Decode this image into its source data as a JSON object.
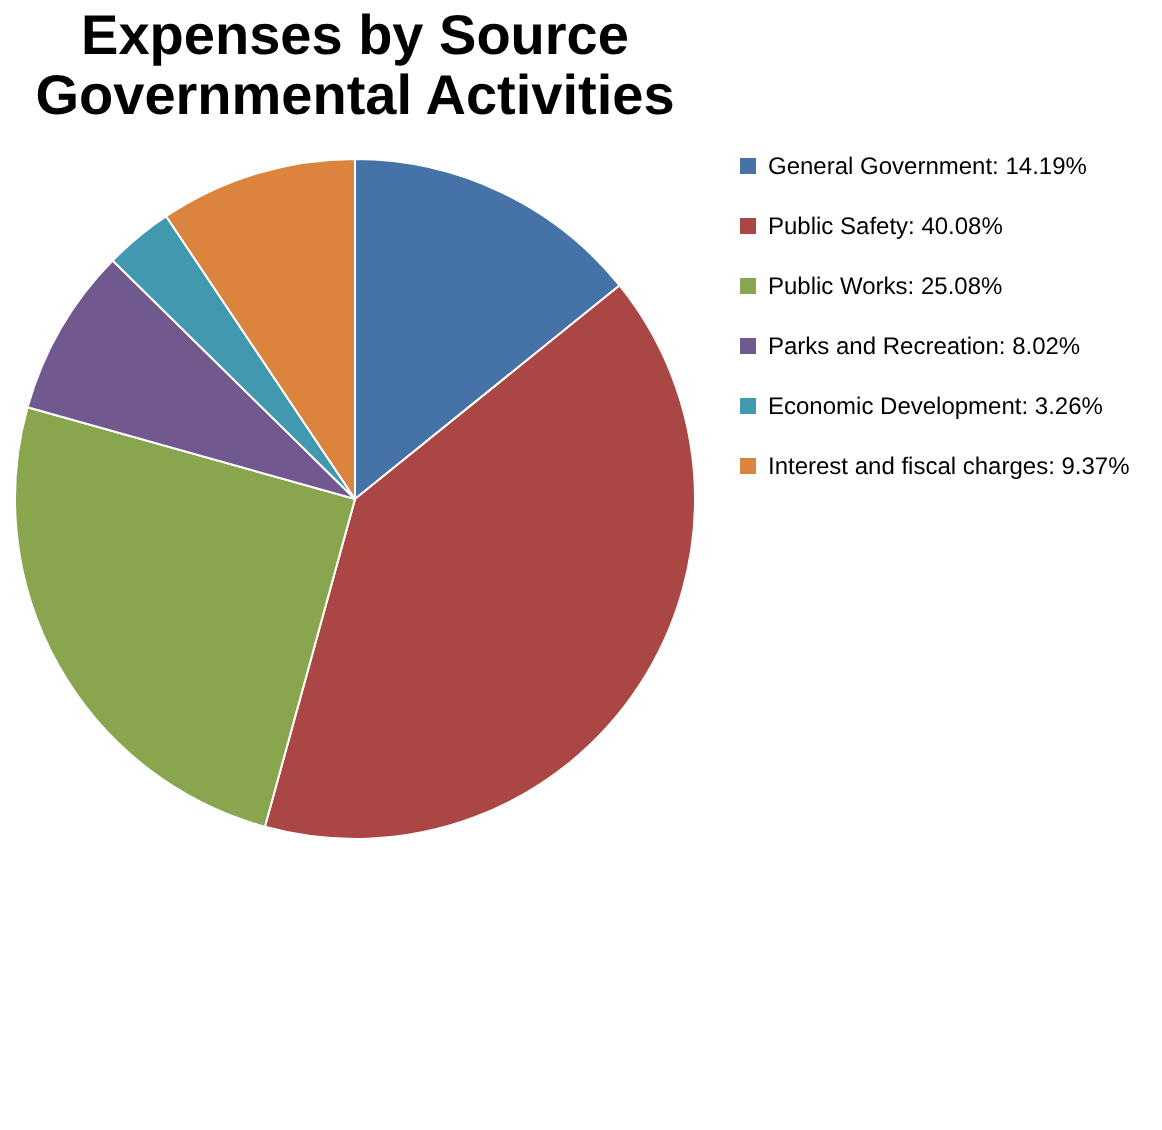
{
  "chart_data": {
    "type": "pie",
    "title": [
      "Expenses by Source",
      "Governmental Activities"
    ],
    "categories": [
      "General Government: 14.19%",
      "Public Safety: 40.08%",
      "Public Works: 25.08%",
      "Parks and Recreation: 8.02%",
      "Economic Development: 3.26%",
      "Interest and fiscal charges: 9.37%"
    ],
    "values": [
      14.19,
      40.08,
      25.08,
      8.02,
      3.26,
      9.37
    ],
    "colors": [
      "#4572a7",
      "#aa4643",
      "#89a54e",
      "#71588f",
      "#4198af",
      "#db843d"
    ],
    "legend": "right"
  }
}
